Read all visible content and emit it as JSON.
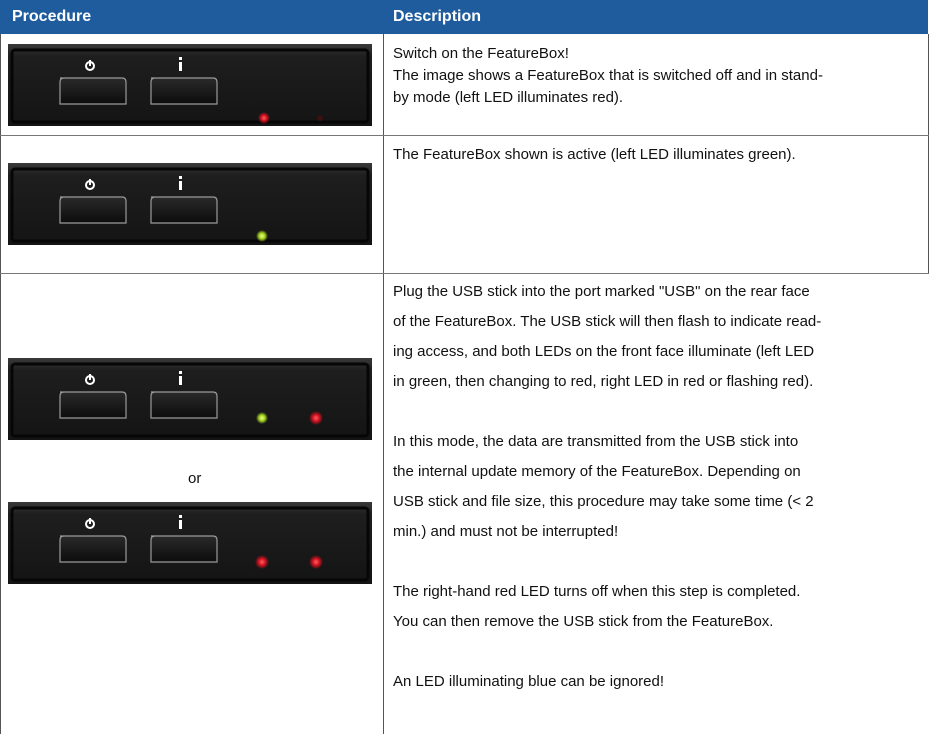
{
  "table": {
    "header": [
      "Procedure",
      "Description"
    ],
    "rows": [
      {
        "description": [
          [
            "Switch on the FeatureBox!",
            "The image shows a FeatureBox that is switched off and in stand-",
            "by mode (left LED illuminates red)."
          ]
        ]
      },
      {
        "description": [
          [
            "The FeatureBox shown is active (left LED illuminates green)."
          ]
        ]
      },
      {
        "procedure_separator": "or",
        "description": [
          [
            "Plug the USB stick into the port marked \"USB\" on the rear face",
            "of the FeatureBox. The USB stick will then flash to indicate read-",
            "ing access, and both LEDs on the front face illuminate (left LED",
            "in green, then changing to red, right LED in red or flashing red)."
          ],
          [
            "In this mode, the data are transmitted from the USB stick into",
            "the internal update memory of the FeatureBox. Depending on",
            "USB stick and file size, this procedure may take some time (< 2",
            "min.) and must not be interrupted!"
          ],
          [
            "The right-hand red LED turns off when this step is completed.",
            "You can then remove the USB stick from the FeatureBox."
          ],
          [
            "An LED illuminating blue can be ignored!"
          ]
        ]
      }
    ]
  }
}
